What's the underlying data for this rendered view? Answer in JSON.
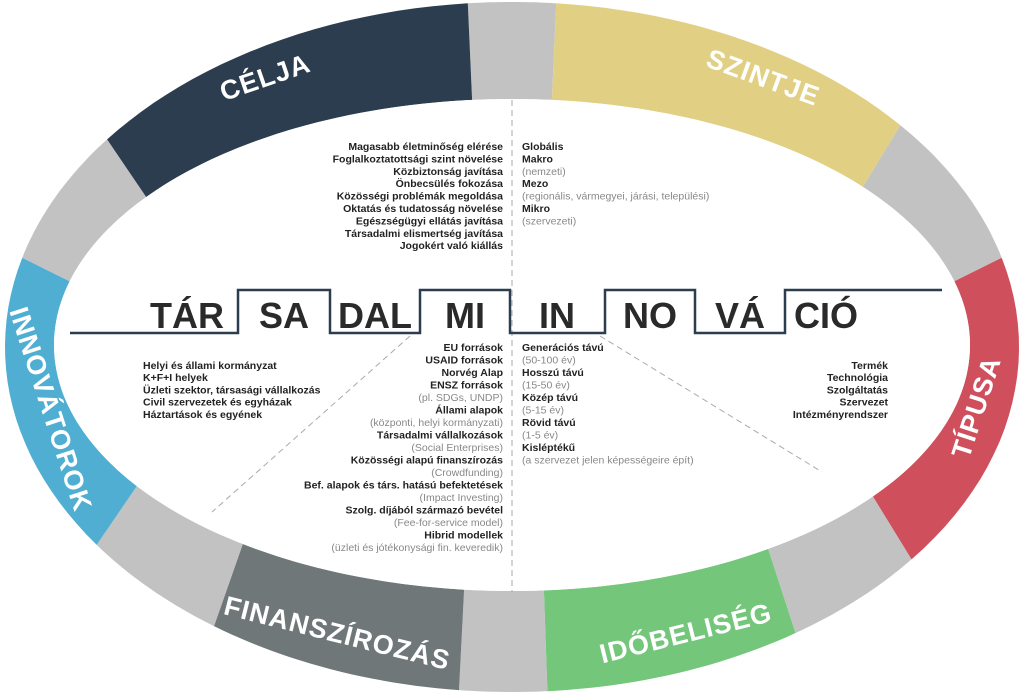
{
  "colors": {
    "celja": "#2c3d50",
    "szintje": "#e1d084",
    "tipusa": "#cf4f5c",
    "idobeliseg": "#74c67b",
    "finanszirozas": "#6f7778",
    "innovatorok": "#50aed2",
    "connector": "#c2c2c2",
    "line": "#2c3d50"
  },
  "segments": {
    "celja": "CÉLJA",
    "szintje": "SZINTJE",
    "tipusa": "TÍPUSA",
    "idobeliseg": "IDŐBELISÉG",
    "finanszirozas": "FINANSZÍROZÁS",
    "innovatorok": "INNOVÁTOROK"
  },
  "title_syllables": [
    "TÁR",
    "SA",
    "DAL",
    "MI",
    "IN",
    "NO",
    "VÁ",
    "CIÓ"
  ],
  "celja_items": [
    {
      "text": "Magasabb életminőség elérése",
      "note": false
    },
    {
      "text": "Foglalkoztatottsági szint növelése",
      "note": false
    },
    {
      "text": "Közbiztonság javítása",
      "note": false
    },
    {
      "text": "Önbecsülés fokozása",
      "note": false
    },
    {
      "text": "Közösségi problémák megoldása",
      "note": false
    },
    {
      "text": "Oktatás és tudatosság növelése",
      "note": false
    },
    {
      "text": "Egészségügyi ellátás javítása",
      "note": false
    },
    {
      "text": "Társadalmi elismertség javítása",
      "note": false
    },
    {
      "text": "Jogokért való kiállás",
      "note": false
    }
  ],
  "szintje_items": [
    {
      "text": "Globális",
      "note": false
    },
    {
      "text": "Makro",
      "note": false
    },
    {
      "text": "(nemzeti)",
      "note": true
    },
    {
      "text": "Mezo",
      "note": false
    },
    {
      "text": "(regionális, vármegyei, járási, települési)",
      "note": true
    },
    {
      "text": "Mikro",
      "note": false
    },
    {
      "text": "(szervezeti)",
      "note": true
    }
  ],
  "innovatorok_items": [
    {
      "text": "Helyi és állami kormányzat",
      "note": false
    },
    {
      "text": "K+F+I helyek",
      "note": false
    },
    {
      "text": "Üzleti szektor, társasági vállalkozás",
      "note": false
    },
    {
      "text": "Civil szervezetek és egyházak",
      "note": false
    },
    {
      "text": "Háztartások és egyének",
      "note": false
    }
  ],
  "tipusa_items": [
    {
      "text": "Termék",
      "note": false
    },
    {
      "text": "Technológia",
      "note": false
    },
    {
      "text": "Szolgáltatás",
      "note": false
    },
    {
      "text": "Szervezet",
      "note": false
    },
    {
      "text": "Intézményrendszer",
      "note": false
    }
  ],
  "finanszirozas_items": [
    {
      "text": "EU források",
      "note": false
    },
    {
      "text": "USAID források",
      "note": false
    },
    {
      "text": "Norvég Alap",
      "note": false
    },
    {
      "text": "ENSZ források",
      "note": false
    },
    {
      "text": "(pl. SDGs, UNDP)",
      "note": true
    },
    {
      "text": "Állami alapok",
      "note": false
    },
    {
      "text": "(központi, helyi kormányzati)",
      "note": true
    },
    {
      "text": "Társadalmi vállalkozások",
      "note": false
    },
    {
      "text": "(Social Enterprises)",
      "note": true
    },
    {
      "text": "Közösségi alapú finanszírozás",
      "note": false
    },
    {
      "text": "(Crowdfunding)",
      "note": true
    },
    {
      "text": "Bef. alapok és társ. hatású befektetések",
      "note": false
    },
    {
      "text": "(Impact Investing)",
      "note": true
    },
    {
      "text": "Szolg. díjából származó bevétel",
      "note": false
    },
    {
      "text": "(Fee-for-service model)",
      "note": true
    },
    {
      "text": "Hibrid modellek",
      "note": false
    },
    {
      "text": "(üzleti és jótékonysági fin. keveredik)",
      "note": true
    }
  ],
  "idobeliseg_items": [
    {
      "text": "Generációs távú",
      "note": false
    },
    {
      "text": "(50-100 év)",
      "note": true
    },
    {
      "text": "Hosszú távú",
      "note": false
    },
    {
      "text": "(15-50 év)",
      "note": true
    },
    {
      "text": "Közép távú",
      "note": false
    },
    {
      "text": "(5-15 év)",
      "note": true
    },
    {
      "text": "Rövid távú",
      "note": false
    },
    {
      "text": "(1-5 év)",
      "note": true
    },
    {
      "text": "Kisléptékű",
      "note": false
    },
    {
      "text": "(a szervezet jelen képességeire épít)",
      "note": true
    }
  ]
}
